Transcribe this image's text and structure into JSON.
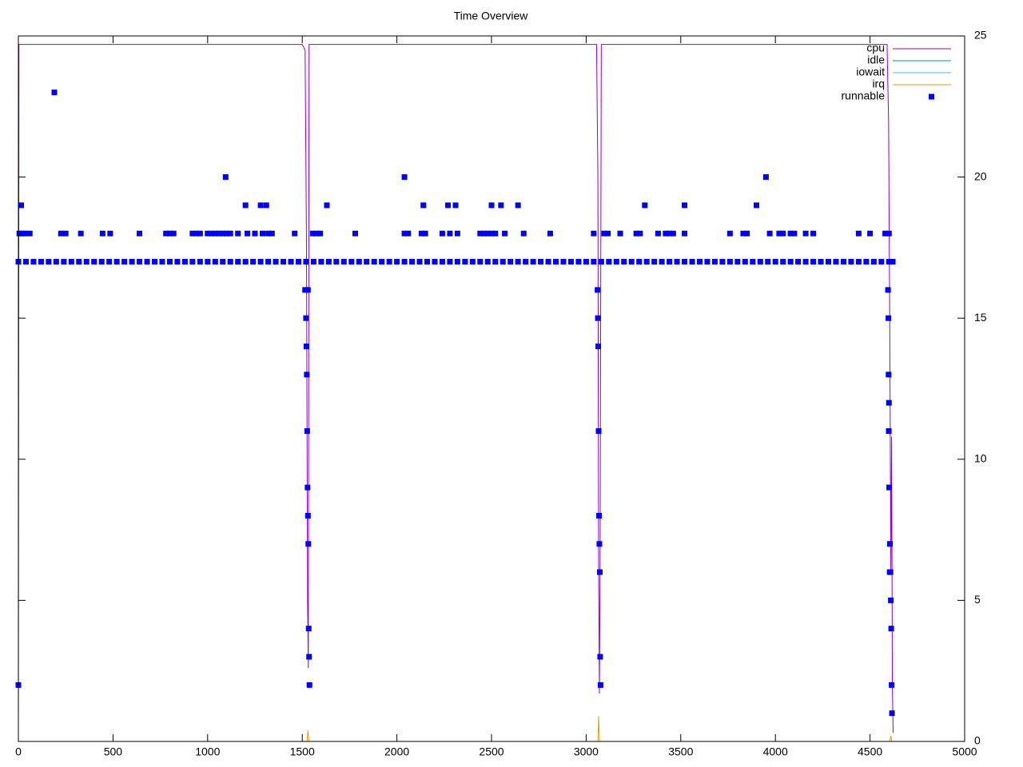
{
  "chart_data": {
    "type": "line",
    "title": "Time Overview",
    "xlim": [
      0,
      5000
    ],
    "xticks": [
      0,
      500,
      1000,
      1500,
      2000,
      2500,
      3000,
      3500,
      4000,
      4500,
      5000
    ],
    "ylim": [
      0,
      25
    ],
    "yticks": [
      0,
      5,
      10,
      15,
      20,
      25
    ],
    "y_axis_side": "right",
    "legend": "top-right",
    "series": [
      {
        "name": "cpu",
        "color": "#9400d3",
        "x": [
          0,
          3,
          8,
          100,
          500,
          1000,
          1500,
          1515,
          1522,
          1528,
          1532,
          1536,
          1540,
          1545,
          2000,
          2500,
          3000,
          3055,
          3062,
          3066,
          3070,
          3074,
          3080,
          3500,
          4000,
          4500,
          4590,
          4598,
          4604,
          4610,
          4614,
          4618,
          4622
        ],
        "values": [
          0.6,
          24.7,
          24.7,
          24.7,
          24.7,
          24.7,
          24.7,
          24.5,
          18,
          5,
          2.6,
          24.7,
          24.7,
          24.7,
          24.7,
          24.7,
          24.7,
          24.7,
          20,
          6,
          1.7,
          7,
          24.7,
          24.7,
          24.7,
          24.7,
          24.7,
          22,
          15,
          6,
          10.8,
          2,
          0.3
        ]
      },
      {
        "name": "idle",
        "color": "#009e73",
        "x": [
          0,
          4622
        ],
        "values": [
          0,
          0
        ]
      },
      {
        "name": "iowait",
        "color": "#56b4e9",
        "x": [
          0,
          4622
        ],
        "values": [
          0,
          0
        ]
      },
      {
        "name": "irq",
        "color": "#e69f00",
        "x": [
          0,
          1500,
          1525,
          1530,
          1535,
          1560,
          3050,
          3062,
          3066,
          3070,
          3090,
          4590,
          4605,
          4610,
          4615,
          4622
        ],
        "values": [
          0,
          0,
          0,
          0.4,
          0,
          0,
          0,
          0,
          0.9,
          0,
          0,
          0,
          0,
          0.2,
          0,
          0
        ]
      },
      {
        "name": "runnable",
        "color": "#0000ff",
        "type": "scatter",
        "x": [
          0,
          40,
          80,
          120,
          160,
          200,
          240,
          280,
          320,
          360,
          400,
          440,
          480,
          520,
          560,
          600,
          640,
          680,
          720,
          760,
          800,
          840,
          880,
          920,
          960,
          1000,
          1040,
          1080,
          1120,
          1160,
          1200,
          1240,
          1280,
          1320,
          1360,
          1400,
          1440,
          1480,
          1520,
          1560,
          1600,
          1640,
          1680,
          1720,
          1760,
          1800,
          1840,
          1880,
          1920,
          1960,
          2000,
          2040,
          2080,
          2120,
          2160,
          2200,
          2240,
          2280,
          2320,
          2360,
          2400,
          2440,
          2480,
          2520,
          2560,
          2600,
          2640,
          2680,
          2720,
          2760,
          2800,
          2840,
          2880,
          2920,
          2960,
          3000,
          3040,
          3080,
          3120,
          3160,
          3200,
          3240,
          3280,
          3320,
          3360,
          3400,
          3440,
          3480,
          3520,
          3560,
          3600,
          3640,
          3680,
          3720,
          3760,
          3800,
          3840,
          3880,
          3920,
          3960,
          4000,
          4040,
          4080,
          4120,
          4160,
          4200,
          4240,
          4280,
          4320,
          4360,
          4400,
          4440,
          4480,
          4520,
          4560,
          4600,
          4620,
          0,
          15,
          5,
          20,
          35,
          60,
          190,
          225,
          250,
          330,
          445,
          485,
          640,
          780,
          800,
          820,
          920,
          940,
          960,
          1000,
          1020,
          1040,
          1060,
          1080,
          1100,
          1120,
          1095,
          1160,
          1200,
          1210,
          1250,
          1280,
          1310,
          1290,
          1320,
          1340,
          1460,
          1515,
          1520,
          1522,
          1524,
          1526,
          1528,
          1530,
          1532,
          1534,
          1536,
          1538,
          1530,
          1555,
          1575,
          1595,
          1630,
          1780,
          2040,
          2040,
          2060,
          2130,
          2150,
          2140,
          2240,
          2270,
          2280,
          2310,
          2320,
          2440,
          2460,
          2480,
          2500,
          2520,
          2500,
          2550,
          2570,
          2640,
          2670,
          2810,
          3040,
          3060,
          3062,
          3064,
          3066,
          3068,
          3070,
          3072,
          3074,
          3076,
          3095,
          3115,
          3180,
          3265,
          3285,
          3310,
          3380,
          3420,
          3440,
          3460,
          3520,
          3520,
          3760,
          3830,
          3850,
          3900,
          3950,
          3970,
          4020,
          4040,
          4080,
          4100,
          4160,
          4200,
          4440,
          4500,
          4580,
          4600,
          4595,
          4597,
          4598,
          4600,
          4599,
          4601,
          4605,
          4604,
          4608,
          4610,
          4612,
          4614,
          4616
        ],
        "values": [
          17,
          17,
          17,
          17,
          17,
          17,
          17,
          17,
          17,
          17,
          17,
          17,
          17,
          17,
          17,
          17,
          17,
          17,
          17,
          17,
          17,
          17,
          17,
          17,
          17,
          17,
          17,
          17,
          17,
          17,
          17,
          17,
          17,
          17,
          17,
          17,
          17,
          17,
          17,
          17,
          17,
          17,
          17,
          17,
          17,
          17,
          17,
          17,
          17,
          17,
          17,
          17,
          17,
          17,
          17,
          17,
          17,
          17,
          17,
          17,
          17,
          17,
          17,
          17,
          17,
          17,
          17,
          17,
          17,
          17,
          17,
          17,
          17,
          17,
          17,
          17,
          17,
          17,
          17,
          17,
          17,
          17,
          17,
          17,
          17,
          17,
          17,
          17,
          17,
          17,
          17,
          17,
          17,
          17,
          17,
          17,
          17,
          17,
          17,
          17,
          17,
          17,
          17,
          17,
          17,
          17,
          17,
          17,
          17,
          17,
          17,
          17,
          17,
          17,
          17,
          17,
          17,
          2,
          19,
          18,
          18,
          18,
          18,
          23,
          18,
          18,
          18,
          18,
          18,
          18,
          18,
          18,
          18,
          18,
          18,
          18,
          18,
          18,
          18,
          18,
          18,
          18,
          18,
          20,
          18,
          19,
          18,
          18,
          19,
          19,
          18,
          18,
          18,
          18,
          16,
          15,
          14,
          13,
          11,
          9,
          8,
          7,
          4,
          3,
          2,
          16,
          18,
          18,
          18,
          19,
          18,
          20,
          18,
          18,
          18,
          18,
          19,
          18,
          19,
          18,
          19,
          18,
          18,
          18,
          18,
          18,
          18,
          19,
          19,
          18,
          19,
          18,
          18,
          18,
          16,
          15,
          14,
          11,
          8,
          7,
          6,
          3,
          2,
          18,
          18,
          18,
          18,
          18,
          19,
          18,
          18,
          18,
          18,
          19,
          18,
          18,
          18,
          18,
          19,
          20,
          18,
          18,
          18,
          18,
          18,
          18,
          18,
          18,
          18,
          18,
          18,
          16,
          15,
          13,
          12,
          11,
          9,
          7,
          6,
          6,
          5,
          4,
          2,
          1
        ]
      }
    ]
  }
}
